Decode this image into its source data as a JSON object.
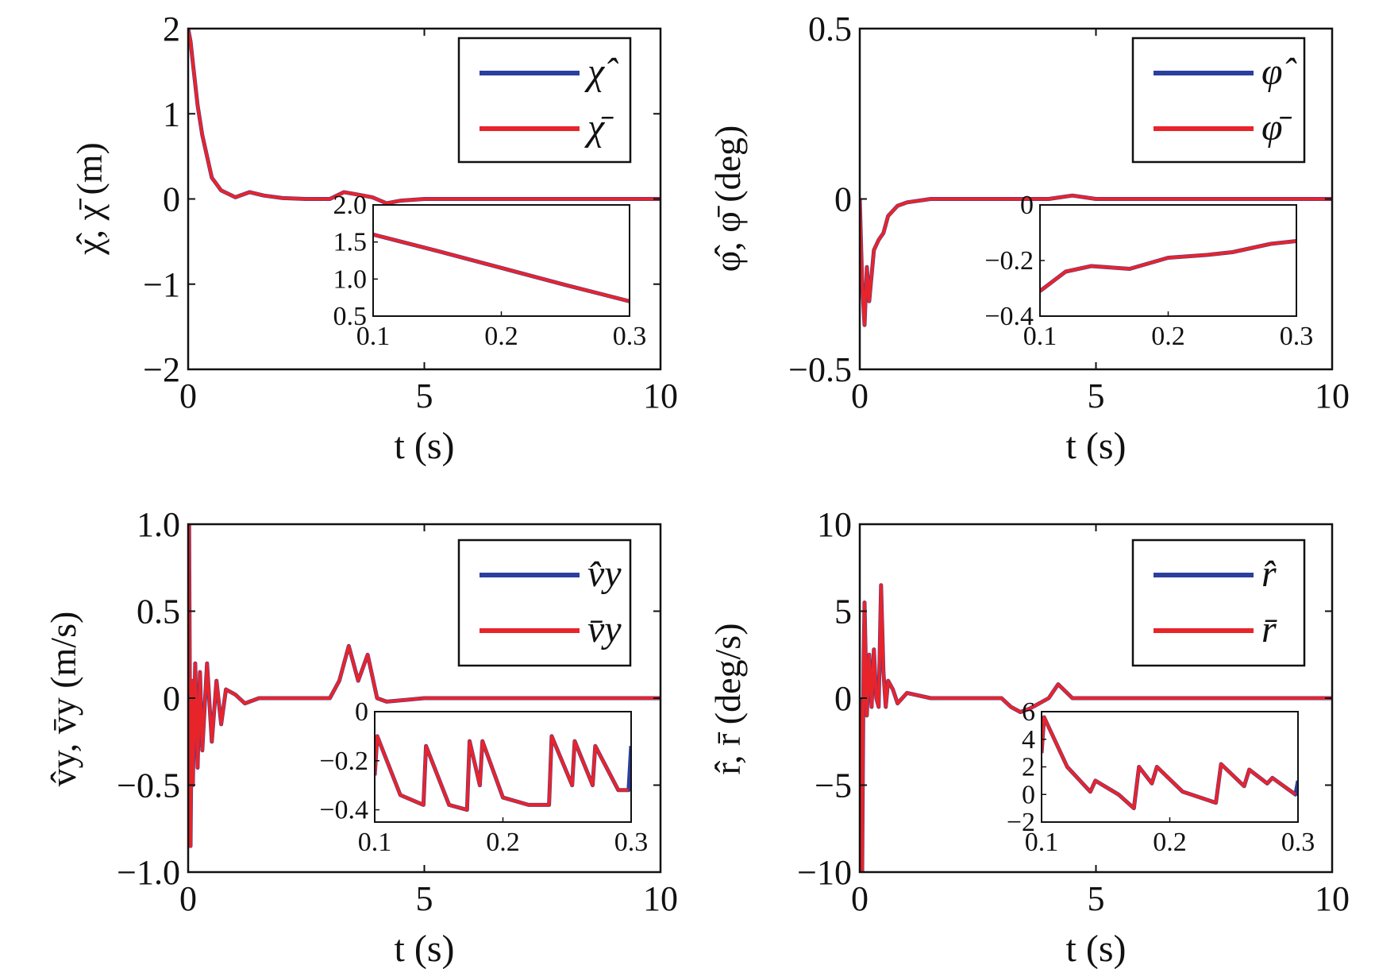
{
  "chart_data": [
    {
      "type": "line",
      "id": "chi",
      "xlabel": "t (s)",
      "ylabel": "χ̂, χ̄ (m)",
      "xlim": [
        0,
        10
      ],
      "ylim": [
        -2,
        2
      ],
      "xticks": [
        "0",
        "5",
        "10"
      ],
      "yticks": [
        "−2",
        "−1",
        "0",
        "1",
        "2"
      ],
      "xtick_values": [
        0,
        5,
        10
      ],
      "ytick_values": [
        -2,
        -1,
        0,
        1,
        2
      ],
      "legend": {
        "placement": "top-right",
        "entries": [
          "χ̂",
          "χ̄"
        ]
      },
      "series": [
        {
          "name": "χ̂",
          "color": "#2b3f9e",
          "x": [
            0,
            0.05,
            0.1,
            0.2,
            0.3,
            0.5,
            0.7,
            1.0,
            1.3,
            1.6,
            2.0,
            2.5,
            3.0,
            3.3,
            3.6,
            3.9,
            4.2,
            4.5,
            5.0,
            6.0,
            7.0,
            8.0,
            9.0,
            10.0
          ],
          "y": [
            2.0,
            1.85,
            1.6,
            1.1,
            0.75,
            0.25,
            0.1,
            0.02,
            0.08,
            0.04,
            0.01,
            0.0,
            0.0,
            0.08,
            0.05,
            0.02,
            -0.05,
            -0.02,
            0.0,
            0.0,
            0.0,
            0.0,
            0.0,
            0.0
          ]
        },
        {
          "name": "χ̄",
          "color": "#e8242b",
          "x": [
            0,
            0.05,
            0.1,
            0.2,
            0.3,
            0.5,
            0.7,
            1.0,
            1.3,
            1.6,
            2.0,
            2.5,
            3.0,
            3.3,
            3.6,
            3.9,
            4.2,
            4.5,
            5.0,
            6.0,
            7.0,
            8.0,
            9.0,
            10.0
          ],
          "y": [
            2.0,
            1.85,
            1.6,
            1.1,
            0.75,
            0.25,
            0.1,
            0.02,
            0.08,
            0.04,
            0.01,
            0.0,
            0.0,
            0.08,
            0.05,
            0.02,
            -0.05,
            -0.02,
            0.0,
            0.0,
            0.0,
            0.0,
            0.0,
            0.0
          ]
        }
      ],
      "inset": {
        "xlim": [
          0.1,
          0.3
        ],
        "ylim": [
          0.5,
          2.0
        ],
        "xticks": [
          "0.1",
          "0.2",
          "0.3"
        ],
        "yticks": [
          "0.5",
          "1.0",
          "1.5",
          "2.0"
        ],
        "xtick_values": [
          0.1,
          0.2,
          0.3
        ],
        "ytick_values": [
          0.5,
          1.0,
          1.5,
          2.0
        ],
        "series": [
          {
            "name": "χ̂",
            "color": "#2b3f9e",
            "x": [
              0.1,
              0.15,
              0.2,
              0.25,
              0.3
            ],
            "y": [
              1.6,
              1.38,
              1.15,
              0.92,
              0.7
            ]
          },
          {
            "name": "χ̄",
            "color": "#e8242b",
            "x": [
              0.1,
              0.15,
              0.2,
              0.25,
              0.3
            ],
            "y": [
              1.6,
              1.38,
              1.15,
              0.92,
              0.7
            ]
          }
        ]
      }
    },
    {
      "type": "line",
      "id": "phi",
      "xlabel": "t (s)",
      "ylabel": "φ̂, φ̄ (deg)",
      "xlim": [
        0,
        10
      ],
      "ylim": [
        -0.5,
        0.5
      ],
      "xticks": [
        "0",
        "5",
        "10"
      ],
      "yticks": [
        "−0.5",
        "0",
        "0.5"
      ],
      "xtick_values": [
        0,
        5,
        10
      ],
      "ytick_values": [
        -0.5,
        0,
        0.5
      ],
      "legend": {
        "placement": "top-right",
        "entries": [
          "φ̂",
          "φ̄"
        ]
      },
      "series": [
        {
          "name": "φ̂",
          "color": "#2b3f9e",
          "x": [
            0,
            0.05,
            0.1,
            0.15,
            0.2,
            0.3,
            0.4,
            0.5,
            0.6,
            0.8,
            1.0,
            1.5,
            2.0,
            3.0,
            4.0,
            4.5,
            5.0,
            6.0,
            8.0,
            10.0
          ],
          "y": [
            0.0,
            -0.25,
            -0.37,
            -0.2,
            -0.3,
            -0.15,
            -0.12,
            -0.1,
            -0.05,
            -0.02,
            -0.01,
            0.0,
            0.0,
            0.0,
            0.0,
            0.01,
            0.0,
            0.0,
            0.0,
            0.0
          ]
        },
        {
          "name": "φ̄",
          "color": "#e8242b",
          "x": [
            0,
            0.05,
            0.1,
            0.15,
            0.2,
            0.3,
            0.4,
            0.5,
            0.6,
            0.8,
            1.0,
            1.5,
            2.0,
            3.0,
            4.0,
            4.5,
            5.0,
            6.0,
            8.0,
            10.0
          ],
          "y": [
            0.0,
            -0.25,
            -0.37,
            -0.2,
            -0.3,
            -0.15,
            -0.12,
            -0.1,
            -0.05,
            -0.02,
            -0.01,
            0.0,
            0.0,
            0.0,
            0.0,
            0.01,
            0.0,
            0.0,
            0.0,
            0.0
          ]
        }
      ],
      "inset": {
        "xlim": [
          0.1,
          0.3
        ],
        "ylim": [
          -0.4,
          0.0
        ],
        "xticks": [
          "0.1",
          "0.2",
          "0.3"
        ],
        "yticks": [
          "−0.4",
          "−0.2",
          "0"
        ],
        "xtick_values": [
          0.1,
          0.2,
          0.3
        ],
        "ytick_values": [
          -0.4,
          -0.2,
          0.0
        ],
        "series": [
          {
            "name": "φ̂",
            "color": "#2b3f9e",
            "x": [
              0.1,
              0.12,
              0.14,
              0.17,
              0.2,
              0.23,
              0.25,
              0.28,
              0.3
            ],
            "y": [
              -0.31,
              -0.24,
              -0.22,
              -0.23,
              -0.19,
              -0.18,
              -0.17,
              -0.14,
              -0.13
            ]
          },
          {
            "name": "φ̄",
            "color": "#e8242b",
            "x": [
              0.1,
              0.12,
              0.14,
              0.17,
              0.2,
              0.23,
              0.25,
              0.28,
              0.3
            ],
            "y": [
              -0.31,
              -0.24,
              -0.22,
              -0.23,
              -0.19,
              -0.18,
              -0.17,
              -0.14,
              -0.13
            ]
          }
        ]
      }
    },
    {
      "type": "line",
      "id": "vy",
      "xlabel": "t (s)",
      "ylabel": "v̂y, v̄y (m/s)",
      "xlim": [
        0,
        10
      ],
      "ylim": [
        -1.0,
        1.0
      ],
      "xticks": [
        "0",
        "5",
        "10"
      ],
      "yticks": [
        "−1.0",
        "−0.5",
        "0",
        "0.5",
        "1.0"
      ],
      "xtick_values": [
        0,
        5,
        10
      ],
      "ytick_values": [
        -1.0,
        -0.5,
        0,
        0.5,
        1.0
      ],
      "legend": {
        "placement": "top-right",
        "entries": [
          "v̂y",
          "v̄y"
        ]
      },
      "series": [
        {
          "name": "v̂y",
          "color": "#2b3f9e",
          "x": [
            0,
            0.02,
            0.05,
            0.08,
            0.1,
            0.15,
            0.2,
            0.25,
            0.3,
            0.4,
            0.5,
            0.6,
            0.7,
            0.8,
            1.0,
            1.2,
            1.5,
            2.0,
            3.0,
            3.2,
            3.4,
            3.6,
            3.8,
            4.0,
            4.2,
            5.0,
            7.0,
            10.0
          ],
          "y": [
            0.0,
            1.0,
            -0.85,
            0.1,
            -0.5,
            0.2,
            -0.4,
            0.15,
            -0.3,
            0.2,
            -0.25,
            0.1,
            -0.15,
            0.05,
            0.02,
            -0.03,
            0.0,
            0.0,
            0.0,
            0.1,
            0.3,
            0.1,
            0.25,
            0.0,
            -0.02,
            0.0,
            0.0,
            0.0
          ]
        },
        {
          "name": "v̄y",
          "color": "#e8242b",
          "x": [
            0,
            0.02,
            0.05,
            0.08,
            0.1,
            0.15,
            0.2,
            0.25,
            0.3,
            0.4,
            0.5,
            0.6,
            0.7,
            0.8,
            1.0,
            1.2,
            1.5,
            2.0,
            3.0,
            3.2,
            3.4,
            3.6,
            3.8,
            4.0,
            4.2,
            5.0,
            7.0,
            10.0
          ],
          "y": [
            0.0,
            1.0,
            -0.85,
            0.1,
            -0.5,
            0.2,
            -0.4,
            0.15,
            -0.3,
            0.2,
            -0.25,
            0.1,
            -0.15,
            0.05,
            0.02,
            -0.03,
            0.0,
            0.0,
            0.0,
            0.1,
            0.3,
            0.1,
            0.25,
            0.0,
            -0.02,
            0.0,
            0.0,
            0.0
          ]
        }
      ],
      "inset": {
        "xlim": [
          0.1,
          0.3
        ],
        "ylim": [
          -0.45,
          0.0
        ],
        "xticks": [
          "0.1",
          "0.2",
          "0.3"
        ],
        "yticks": [
          "−0.4",
          "−0.2",
          "0"
        ],
        "xtick_values": [
          0.1,
          0.2,
          0.3
        ],
        "ytick_values": [
          -0.4,
          -0.2,
          0.0
        ],
        "series": [
          {
            "name": "v̂y",
            "color": "#2b3f9e",
            "x": [
              0.1,
              0.102,
              0.12,
              0.138,
              0.14,
              0.158,
              0.172,
              0.174,
              0.182,
              0.184,
              0.2,
              0.22,
              0.236,
              0.238,
              0.254,
              0.256,
              0.27,
              0.272,
              0.29,
              0.298,
              0.3
            ],
            "y": [
              -0.26,
              -0.1,
              -0.34,
              -0.38,
              -0.14,
              -0.38,
              -0.4,
              -0.12,
              -0.3,
              -0.12,
              -0.35,
              -0.38,
              -0.38,
              -0.1,
              -0.3,
              -0.12,
              -0.3,
              -0.14,
              -0.32,
              -0.32,
              -0.14
            ]
          },
          {
            "name": "v̄y",
            "color": "#e8242b",
            "x": [
              0.1,
              0.102,
              0.12,
              0.138,
              0.14,
              0.158,
              0.172,
              0.174,
              0.182,
              0.184,
              0.2,
              0.22,
              0.236,
              0.238,
              0.254,
              0.256,
              0.27,
              0.272,
              0.29,
              0.298
            ],
            "y": [
              -0.26,
              -0.1,
              -0.34,
              -0.38,
              -0.14,
              -0.38,
              -0.4,
              -0.12,
              -0.3,
              -0.12,
              -0.35,
              -0.38,
              -0.38,
              -0.1,
              -0.3,
              -0.12,
              -0.3,
              -0.14,
              -0.32,
              -0.32
            ]
          }
        ]
      }
    },
    {
      "type": "line",
      "id": "r",
      "xlabel": "t (s)",
      "ylabel": "r̂, r̄ (deg/s)",
      "xlim": [
        0,
        10
      ],
      "ylim": [
        -10,
        10
      ],
      "xticks": [
        "0",
        "5",
        "10"
      ],
      "yticks": [
        "−10",
        "−5",
        "0",
        "5",
        "10"
      ],
      "xtick_values": [
        0,
        5,
        10
      ],
      "ytick_values": [
        -10,
        -5,
        0,
        5,
        10
      ],
      "legend": {
        "placement": "top-right",
        "entries": [
          "r̂",
          "r̄"
        ]
      },
      "series": [
        {
          "name": "r̂",
          "color": "#2b3f9e",
          "x": [
            0,
            0.05,
            0.08,
            0.1,
            0.15,
            0.2,
            0.25,
            0.3,
            0.35,
            0.4,
            0.45,
            0.5,
            0.55,
            0.6,
            0.7,
            0.8,
            1.0,
            1.5,
            2.0,
            3.0,
            3.2,
            3.4,
            3.6,
            3.8,
            4.0,
            4.2,
            4.5,
            5.0,
            7.0,
            10.0
          ],
          "y": [
            0.0,
            -10.0,
            2.0,
            5.5,
            -1.0,
            2.5,
            -0.5,
            2.8,
            0.0,
            -0.5,
            6.5,
            1.5,
            -0.5,
            1.0,
            0.5,
            -0.3,
            0.3,
            0.0,
            0.0,
            0.0,
            -0.5,
            -0.8,
            -0.6,
            -0.3,
            0.0,
            0.8,
            0.0,
            0.0,
            0.0,
            0.0
          ]
        },
        {
          "name": "r̄",
          "color": "#e8242b",
          "x": [
            0,
            0.05,
            0.08,
            0.1,
            0.15,
            0.2,
            0.25,
            0.3,
            0.35,
            0.4,
            0.45,
            0.5,
            0.55,
            0.6,
            0.7,
            0.8,
            1.0,
            1.5,
            2.0,
            3.0,
            3.2,
            3.4,
            3.6,
            3.8,
            4.0,
            4.2,
            4.5,
            5.0,
            7.0,
            10.0
          ],
          "y": [
            0.0,
            -10.0,
            2.0,
            5.5,
            -1.0,
            2.5,
            -0.5,
            2.8,
            0.0,
            -0.5,
            6.5,
            1.5,
            -0.5,
            1.0,
            0.5,
            -0.3,
            0.3,
            0.0,
            0.0,
            0.0,
            -0.5,
            -0.8,
            -0.6,
            -0.3,
            0.0,
            0.8,
            0.0,
            0.0,
            0.0,
            0.0
          ]
        }
      ],
      "inset": {
        "xlim": [
          0.1,
          0.3
        ],
        "ylim": [
          -2,
          6
        ],
        "xticks": [
          "0.1",
          "0.2",
          "0.3"
        ],
        "yticks": [
          "−2",
          "0",
          "2",
          "4",
          "6"
        ],
        "xtick_values": [
          0.1,
          0.2,
          0.3
        ],
        "ytick_values": [
          -2,
          0,
          2,
          4,
          6
        ],
        "series": [
          {
            "name": "r̂",
            "color": "#2b3f9e",
            "x": [
              0.1,
              0.102,
              0.12,
              0.138,
              0.142,
              0.16,
              0.172,
              0.176,
              0.186,
              0.19,
              0.21,
              0.236,
              0.24,
              0.258,
              0.262,
              0.276,
              0.28,
              0.298,
              0.3
            ],
            "y": [
              3.0,
              5.6,
              2.0,
              0.2,
              1.0,
              0.0,
              -1.0,
              2.0,
              0.8,
              2.0,
              0.2,
              -0.6,
              2.2,
              0.6,
              1.8,
              0.8,
              1.2,
              0.0,
              1.0
            ]
          },
          {
            "name": "r̄",
            "color": "#e8242b",
            "x": [
              0.1,
              0.102,
              0.12,
              0.138,
              0.142,
              0.16,
              0.172,
              0.176,
              0.186,
              0.19,
              0.21,
              0.236,
              0.24,
              0.258,
              0.262,
              0.276,
              0.28,
              0.298
            ],
            "y": [
              3.0,
              5.6,
              2.0,
              0.2,
              1.0,
              0.0,
              -1.0,
              2.0,
              0.8,
              2.0,
              0.2,
              -0.6,
              2.2,
              0.6,
              1.8,
              0.8,
              1.2,
              0.0
            ]
          }
        ]
      }
    }
  ]
}
